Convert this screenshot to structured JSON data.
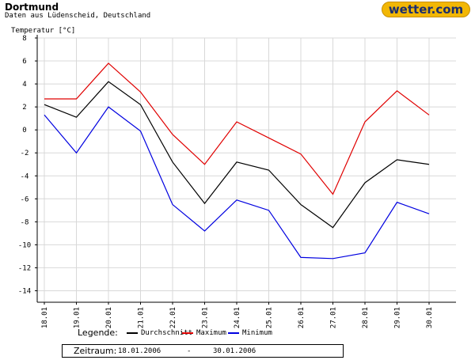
{
  "header": {
    "title": "Dortmund",
    "subtitle": "Daten aus Lüdenscheid, Deutschland",
    "logo_text": "wetter.com"
  },
  "legend": {
    "label": "Legende:",
    "items": [
      {
        "label": "Durchschnitt",
        "color": "#000000"
      },
      {
        "label": "Maximum",
        "color": "#e00000"
      },
      {
        "label": "Minimum",
        "color": "#0000e0"
      }
    ]
  },
  "period": {
    "label": "Zeitraum:",
    "start": "18.01.2006",
    "separator": "-",
    "end": "30.01.2006"
  },
  "chart_data": {
    "type": "line",
    "ylabel": "Temperatur [°C]",
    "xlabel": "",
    "ylim": [
      -15,
      8
    ],
    "yticks": [
      8,
      6,
      4,
      2,
      0,
      -2,
      -4,
      -6,
      -8,
      -10,
      -12,
      -14
    ],
    "grid": true,
    "categories": [
      "18.01",
      "19.01",
      "20.01",
      "21.01",
      "22.01",
      "23.01",
      "24.01",
      "25.01",
      "26.01",
      "27.01",
      "28.01",
      "29.01",
      "30.01"
    ],
    "series": [
      {
        "name": "Durchschnitt",
        "color": "#000000",
        "values": [
          2.2,
          1.1,
          4.2,
          2.2,
          -2.8,
          -6.4,
          -2.8,
          -3.5,
          -6.5,
          -8.5,
          -4.6,
          -2.6,
          -3.0
        ]
      },
      {
        "name": "Maximum",
        "color": "#e00000",
        "values": [
          2.7,
          2.7,
          5.8,
          3.3,
          -0.4,
          -3.0,
          0.7,
          -0.7,
          -2.1,
          -5.6,
          0.7,
          3.4,
          1.3
        ]
      },
      {
        "name": "Minimum",
        "color": "#0000e0",
        "values": [
          1.3,
          -2.0,
          2.0,
          -0.1,
          -6.5,
          -8.8,
          -6.1,
          -7.0,
          -11.1,
          -11.2,
          -10.7,
          -6.3,
          -7.3
        ]
      }
    ]
  }
}
